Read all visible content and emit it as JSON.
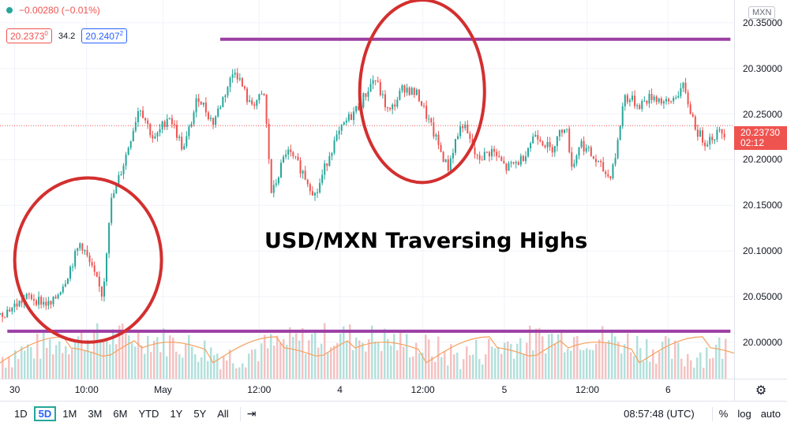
{
  "legend": {
    "change_text": "−0.00280 (−0.01%)",
    "bid": "20.2373",
    "bid_sup": "0",
    "spread": "34.2",
    "ask": "20.2407",
    "ask_sup": "2"
  },
  "ticker_badge": "MXN",
  "annotation": "USD/MXN Traversing Highs",
  "current_price": {
    "value": "20.23730",
    "countdown": "02:12"
  },
  "bottom_bar": {
    "ranges": [
      "1D",
      "5D",
      "1M",
      "3M",
      "6M",
      "YTD",
      "1Y",
      "5Y",
      "All"
    ],
    "active_range": "5D",
    "time": "08:57:48 (UTC)",
    "percent": "%",
    "log": "log",
    "auto": "auto"
  },
  "colors": {
    "up": "#26a69a",
    "down": "#ef5350",
    "purple": "#9c3fa3",
    "circle": "#d32f2f",
    "vol_ma": "#f5a25d"
  },
  "chart_data": {
    "type": "candlestick",
    "title": "",
    "y_ticks": [
      "20.35000",
      "20.30000",
      "20.25000",
      "20.20000",
      "20.15000",
      "20.10000",
      "20.05000",
      "20.00000"
    ],
    "ylim": [
      19.96,
      20.375
    ],
    "x_ticks": [
      "30",
      "10:00",
      "May",
      "12:00",
      "4",
      "12:00",
      "5",
      "12:00",
      "6"
    ],
    "close_path": [
      [
        0,
        20.03
      ],
      [
        4,
        20.05
      ],
      [
        7,
        20.04
      ],
      [
        9,
        20.07
      ],
      [
        11,
        20.11
      ],
      [
        12,
        20.09
      ],
      [
        14,
        20.05
      ],
      [
        15,
        20.15
      ],
      [
        17,
        20.2
      ],
      [
        19,
        20.26
      ],
      [
        21,
        20.22
      ],
      [
        23,
        20.25
      ],
      [
        25,
        20.21
      ],
      [
        27,
        20.27
      ],
      [
        29,
        20.24
      ],
      [
        31,
        20.28
      ],
      [
        32,
        20.3
      ],
      [
        34,
        20.26
      ],
      [
        36,
        20.27
      ],
      [
        37,
        20.16
      ],
      [
        39,
        20.21
      ],
      [
        41,
        20.19
      ],
      [
        43,
        20.16
      ],
      [
        45,
        20.21
      ],
      [
        47,
        20.24
      ],
      [
        49,
        20.26
      ],
      [
        51,
        20.29
      ],
      [
        53,
        20.25
      ],
      [
        55,
        20.28
      ],
      [
        57,
        20.27
      ],
      [
        59,
        20.23
      ],
      [
        61,
        20.19
      ],
      [
        62,
        20.22
      ],
      [
        63,
        20.24
      ],
      [
        65,
        20.2
      ],
      [
        67,
        20.21
      ],
      [
        69,
        20.19
      ],
      [
        71,
        20.2
      ],
      [
        73,
        20.23
      ],
      [
        75,
        20.21
      ],
      [
        77,
        20.24
      ],
      [
        78,
        20.19
      ],
      [
        79,
        20.22
      ],
      [
        81,
        20.2
      ],
      [
        83,
        20.18
      ],
      [
        84,
        20.21
      ],
      [
        85,
        20.27
      ],
      [
        87,
        20.26
      ],
      [
        89,
        20.27
      ],
      [
        91,
        20.26
      ],
      [
        93,
        20.28
      ],
      [
        95,
        20.23
      ],
      [
        96,
        20.22
      ],
      [
        98,
        20.23
      ]
    ],
    "resistance": 20.332,
    "support": 20.012,
    "current": 20.2373,
    "highlight_circles": [
      {
        "label": "low-zone",
        "cx_frac": 0.12,
        "cy_price": 20.09,
        "rx_frac": 0.1,
        "ry_price": 0.09
      },
      {
        "label": "high-zone",
        "cx_frac": 0.575,
        "cy_price": 20.275,
        "rx_frac": 0.085,
        "ry_price": 0.1
      }
    ]
  }
}
